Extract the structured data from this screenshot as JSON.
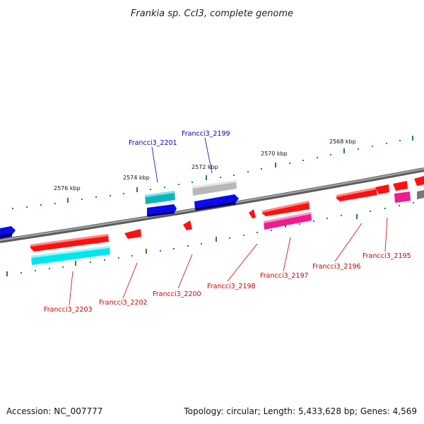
{
  "title": "Frankia sp. CcI3, complete genome",
  "footer": {
    "accession": "Accession: NC_007777",
    "summary": "Topology: circular; Length: 5,433,628 bp; Genes: 4,569"
  },
  "colors": {
    "backbone": "#777777",
    "tick": "#228822",
    "red_gene": "#ff1010",
    "magenta_gene": "#ee1c8e",
    "cyan_gene": "#00e6ee",
    "teal_gene": "#10b4b8",
    "blue_gene": "#0a0aee",
    "gray_gene": "#b8b8b8",
    "label_forward": "#0000bb",
    "label_reverse": "#cc0000"
  },
  "scale_labels": [
    "2576 kbp",
    "2574 kbp",
    "2572 kbp",
    "2570 kbp",
    "2568 kbp"
  ],
  "gene_labels": [
    {
      "text": "Francci3_2201",
      "strand": "forward"
    },
    {
      "text": "Francci3_2199",
      "strand": "forward"
    },
    {
      "text": "Francci3_2203",
      "strand": "reverse"
    },
    {
      "text": "Francci3_2202",
      "strand": "reverse"
    },
    {
      "text": "Francci3_2200",
      "strand": "reverse"
    },
    {
      "text": "Francci3_2198",
      "strand": "reverse"
    },
    {
      "text": "Francci3_2197",
      "strand": "reverse"
    },
    {
      "text": "Francci3_2196",
      "strand": "reverse"
    },
    {
      "text": "Francci3_2195",
      "strand": "reverse"
    }
  ]
}
